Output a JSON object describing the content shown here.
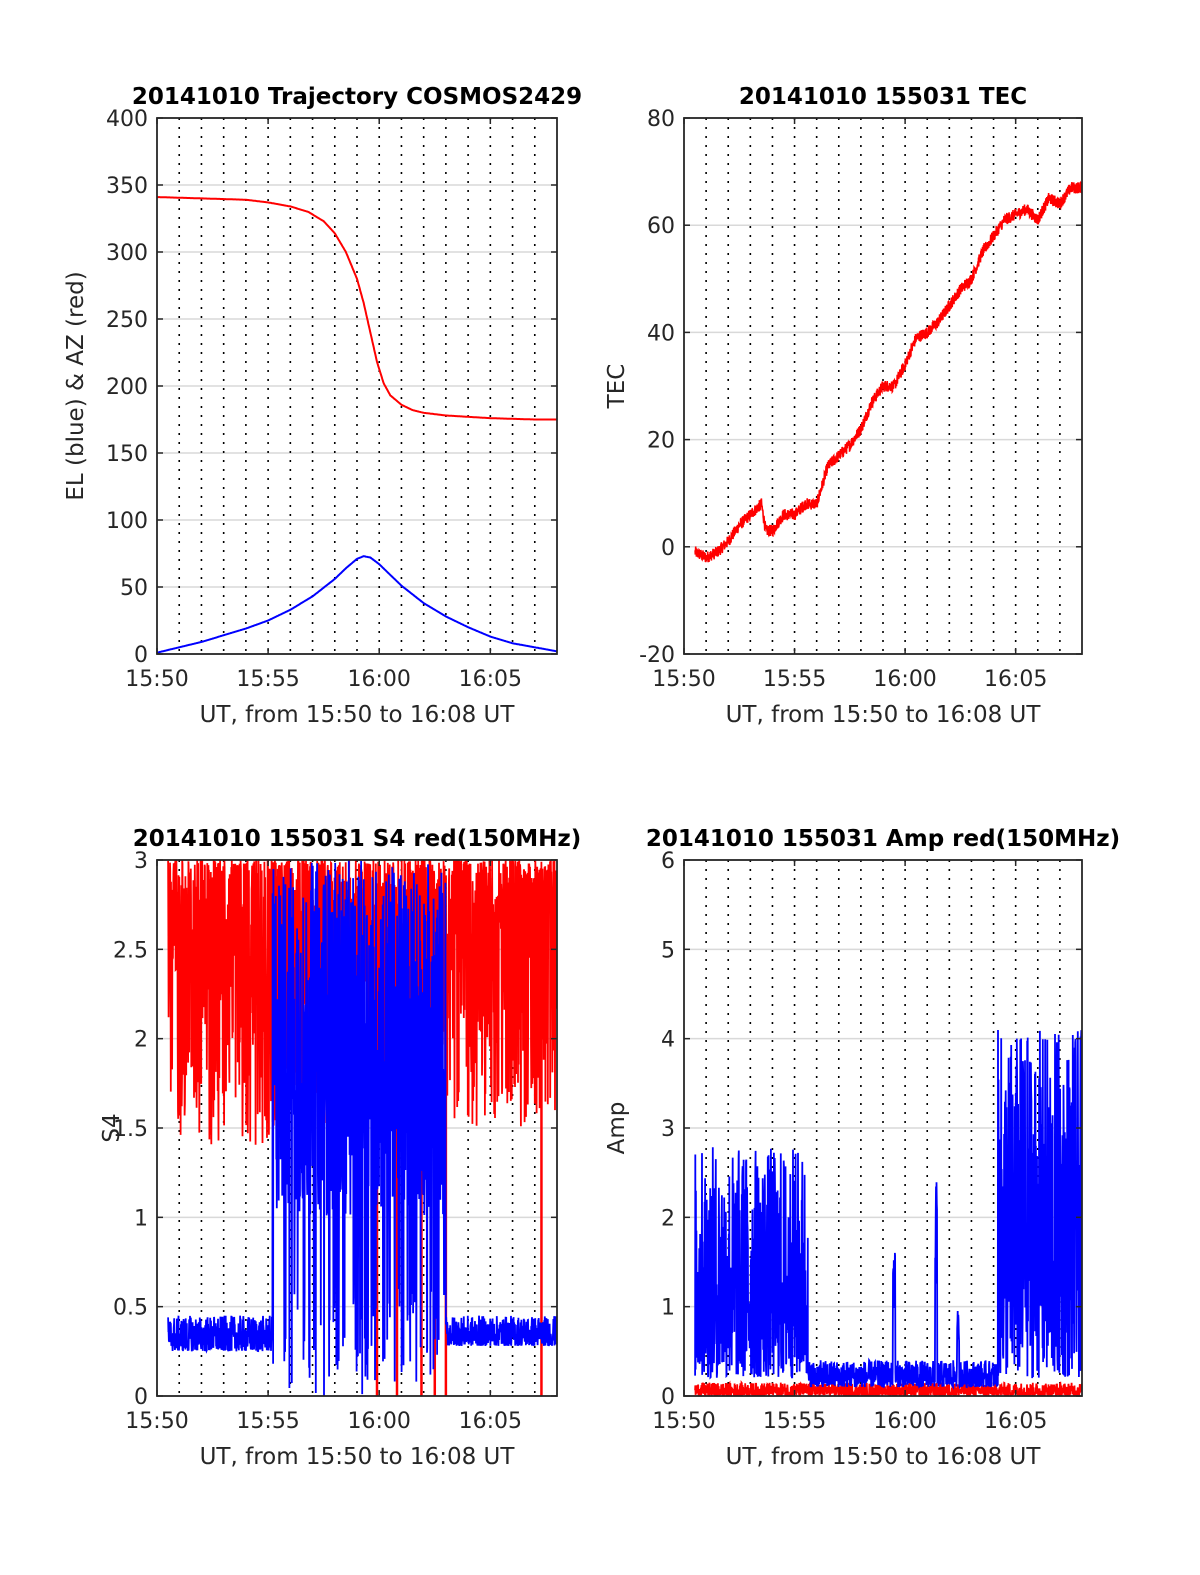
{
  "colors": {
    "red_series": "#ff0000",
    "blue_series": "#0000ff",
    "grid": "#d9d9d9",
    "axis": "#262626"
  },
  "chart_data": [
    {
      "type": "line",
      "title": "20141010 Trajectory COSMOS2429",
      "xlabel": "UT, from 15:50 to 16:08 UT",
      "ylabel": "EL (blue) & AZ (red)",
      "xlim_minutes_after_1550": [
        0,
        18
      ],
      "ylim": [
        0,
        400
      ],
      "x_ticks": [
        "15:50",
        "15:55",
        "16:00",
        "16:05"
      ],
      "y_ticks": [
        "0",
        "50",
        "100",
        "150",
        "200",
        "250",
        "300",
        "350",
        "400"
      ],
      "grid": "horizontal solid, vertical dotted every minute",
      "series": [
        {
          "color": "red",
          "x": [
            0,
            2,
            4,
            5,
            6,
            6.8,
            7.5,
            8,
            8.5,
            9,
            9.3,
            9.6,
            9.9,
            10.2,
            10.5,
            11,
            11.5,
            12,
            13,
            14,
            15,
            16,
            17,
            18
          ],
          "values": [
            341,
            340,
            339,
            337,
            334,
            330,
            323,
            314,
            300,
            280,
            262,
            240,
            218,
            202,
            193,
            186,
            182,
            180,
            178,
            177,
            176,
            175.5,
            175,
            175
          ]
        },
        {
          "color": "blue",
          "x": [
            0,
            1,
            2,
            3,
            4,
            5,
            6,
            7,
            8,
            8.5,
            9,
            9.3,
            9.6,
            10,
            10.5,
            11,
            12,
            13,
            14,
            15,
            16,
            17,
            18
          ],
          "values": [
            1,
            5,
            9,
            14,
            19,
            25,
            33,
            43,
            56,
            64,
            71,
            73,
            72,
            67,
            59,
            51,
            38,
            28,
            20,
            13,
            8,
            5,
            2
          ]
        }
      ]
    },
    {
      "type": "line",
      "title": "20141010 155031 TEC",
      "xlabel": "UT, from 15:50 to 16:08 UT",
      "ylabel": "TEC",
      "xlim_minutes_after_1550": [
        0,
        18
      ],
      "ylim": [
        -20,
        80
      ],
      "x_ticks": [
        "15:50",
        "15:55",
        "16:00",
        "16:05"
      ],
      "y_ticks": [
        "-20",
        "0",
        "20",
        "40",
        "60",
        "80"
      ],
      "series": [
        {
          "color": "red",
          "x": [
            0.5,
            1,
            1.5,
            2,
            2.5,
            3,
            3.5,
            3.7,
            4,
            4.5,
            5,
            5.5,
            6,
            6.5,
            7,
            7.5,
            8,
            8.5,
            9,
            9.5,
            10,
            10.5,
            11,
            11.5,
            12,
            12.5,
            13,
            13.5,
            14,
            14.5,
            15,
            15.5,
            16,
            16.5,
            17,
            17.5,
            18
          ],
          "values": [
            -1,
            -2,
            -1,
            1,
            4,
            6,
            8,
            3,
            3,
            6,
            6,
            8,
            8,
            15,
            17,
            19,
            22,
            27,
            30,
            30,
            34,
            39,
            40,
            42,
            45,
            48,
            50,
            55,
            58,
            61,
            62,
            63,
            61,
            65,
            64,
            67,
            67
          ]
        }
      ]
    },
    {
      "type": "line",
      "title": "20141010 155031 S4 red(150MHz)",
      "xlabel": "UT, from 15:50 to 16:08 UT",
      "ylabel": "S4",
      "xlim_minutes_after_1550": [
        0,
        18
      ],
      "ylim": [
        0,
        3
      ],
      "x_ticks": [
        "15:50",
        "15:55",
        "16:00",
        "16:05"
      ],
      "y_ticks": [
        "0",
        "0.5",
        "1",
        "1.5",
        "2",
        "2.5",
        "3"
      ],
      "series": [
        {
          "color": "red",
          "segments": [
            {
              "x_range": [
                0.5,
                5.3
              ],
              "level": [
                1.4,
                3.0
              ],
              "note": "dense noise mostly 1.9-3"
            },
            {
              "x_range": [
                5.3,
                18
              ],
              "level": [
                1.5,
                3.0
              ],
              "note": "dense noise with drops to 0 near 9.9, 10.8, 11.9, 12.5, 13.0, 17.3"
            }
          ]
        },
        {
          "color": "blue",
          "segments": [
            {
              "x_range": [
                0.5,
                5.2
              ],
              "level": [
                0.25,
                0.45
              ]
            },
            {
              "x_range": [
                5.2,
                13.0
              ],
              "level": [
                0,
                3.0
              ],
              "note": "high variable 1-3 with deep drops"
            },
            {
              "x_range": [
                13.0,
                18
              ],
              "level": [
                0.28,
                0.45
              ]
            }
          ]
        }
      ]
    },
    {
      "type": "line",
      "title": "20141010 155031 Amp red(150MHz)",
      "xlabel": "UT, from 15:50 to 16:08 UT",
      "ylabel": "Amp",
      "xlim_minutes_after_1550": [
        0,
        18
      ],
      "ylim": [
        0,
        6
      ],
      "x_ticks": [
        "15:50",
        "15:55",
        "16:00",
        "16:05"
      ],
      "y_ticks": [
        "0",
        "1",
        "2",
        "3",
        "4",
        "5",
        "6"
      ],
      "series": [
        {
          "color": "red",
          "segments": [
            {
              "x_range": [
                0.5,
                18
              ],
              "level": [
                0,
                0.15
              ]
            }
          ]
        },
        {
          "color": "blue",
          "segments": [
            {
              "x_range": [
                0.5,
                5.6
              ],
              "level": [
                0.2,
                2.8
              ]
            },
            {
              "x_range": [
                5.6,
                14.2
              ],
              "level": [
                0.1,
                0.4
              ],
              "spikes": [
                [
                  9.5,
                  1.8
                ],
                [
                  11.4,
                  2.4
                ],
                [
                  12.4,
                  1.0
                ]
              ]
            },
            {
              "x_range": [
                14.2,
                18
              ],
              "level": [
                0.2,
                4.1
              ]
            }
          ]
        }
      ]
    }
  ]
}
